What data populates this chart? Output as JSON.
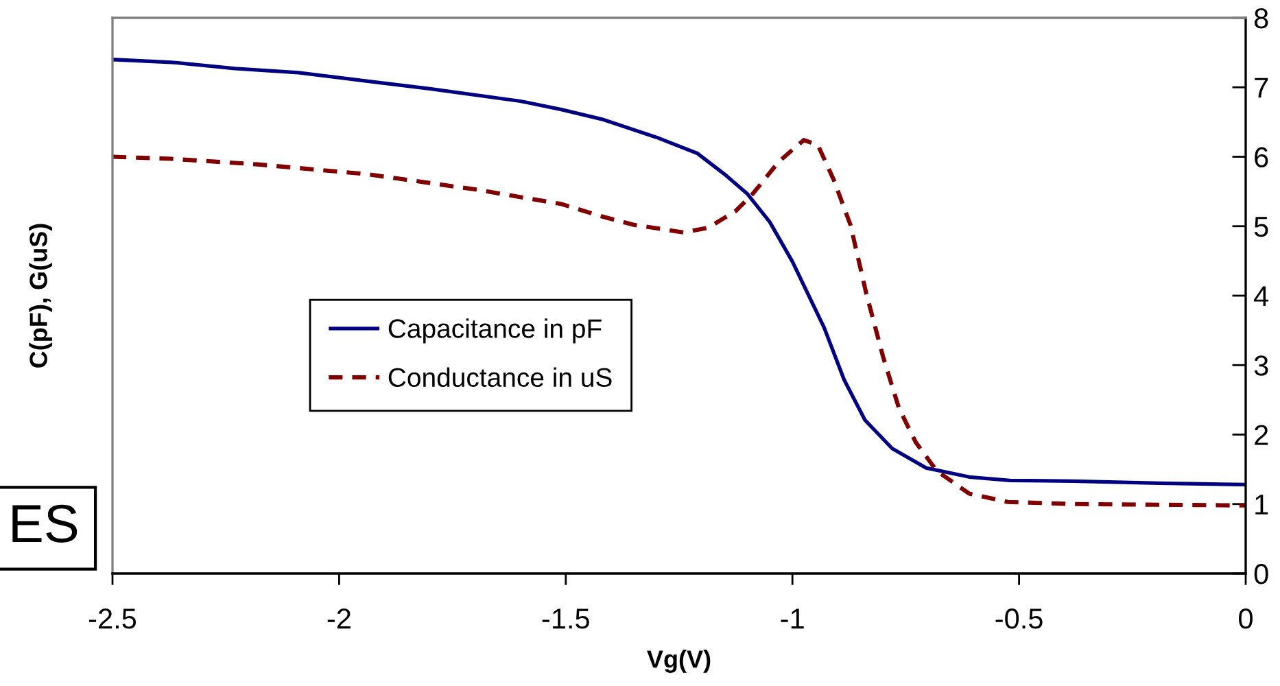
{
  "chart_data": {
    "type": "line",
    "xlabel": "Vg(V)",
    "ylabel": "C(pF), G(uS)",
    "xlim": [
      -2.5,
      0
    ],
    "ylim": [
      0,
      8
    ],
    "xticks": [
      -2.5,
      -2,
      -1.5,
      -1,
      -0.5,
      0
    ],
    "yticks": [
      0,
      1,
      2,
      3,
      4,
      5,
      6,
      7,
      8
    ],
    "legend": "center left",
    "annotations": [
      "ES"
    ],
    "series": [
      {
        "name": "Capacitance in pF",
        "color": "#000080",
        "line_style": "solid",
        "x": [
          -2.5,
          -2.37,
          -2.23,
          -2.09,
          -1.94,
          -1.8,
          -1.6,
          -1.51,
          -1.42,
          -1.3,
          -1.21,
          -1.15,
          -1.1,
          -1.05,
          -1.0,
          -0.93,
          -0.886,
          -0.84,
          -0.78,
          -0.705,
          -0.61,
          -0.52,
          -0.38,
          -0.19,
          0
        ],
        "values": [
          7.4,
          7.36,
          7.27,
          7.21,
          7.09,
          6.98,
          6.8,
          6.68,
          6.54,
          6.28,
          6.05,
          5.75,
          5.47,
          5.06,
          4.49,
          3.54,
          2.79,
          2.21,
          1.8,
          1.52,
          1.39,
          1.34,
          1.33,
          1.3,
          1.28
        ]
      },
      {
        "name": "Conductance in uS",
        "color": "#800000",
        "line_style": "dashed",
        "x": [
          -2.5,
          -2.37,
          -2.18,
          -1.94,
          -1.7,
          -1.51,
          -1.42,
          -1.35,
          -1.24,
          -1.185,
          -1.125,
          -1.087,
          -1.03,
          -0.975,
          -0.944,
          -0.909,
          -0.872,
          -0.837,
          -0.8,
          -0.765,
          -0.728,
          -0.682,
          -0.61,
          -0.525,
          -0.38,
          0
        ],
        "values": [
          6.0,
          5.97,
          5.89,
          5.75,
          5.53,
          5.32,
          5.14,
          5.02,
          4.91,
          4.98,
          5.22,
          5.47,
          5.93,
          6.24,
          6.17,
          5.67,
          5.02,
          4.03,
          3.12,
          2.38,
          1.89,
          1.48,
          1.15,
          1.03,
          1.0,
          0.98
        ]
      }
    ]
  }
}
